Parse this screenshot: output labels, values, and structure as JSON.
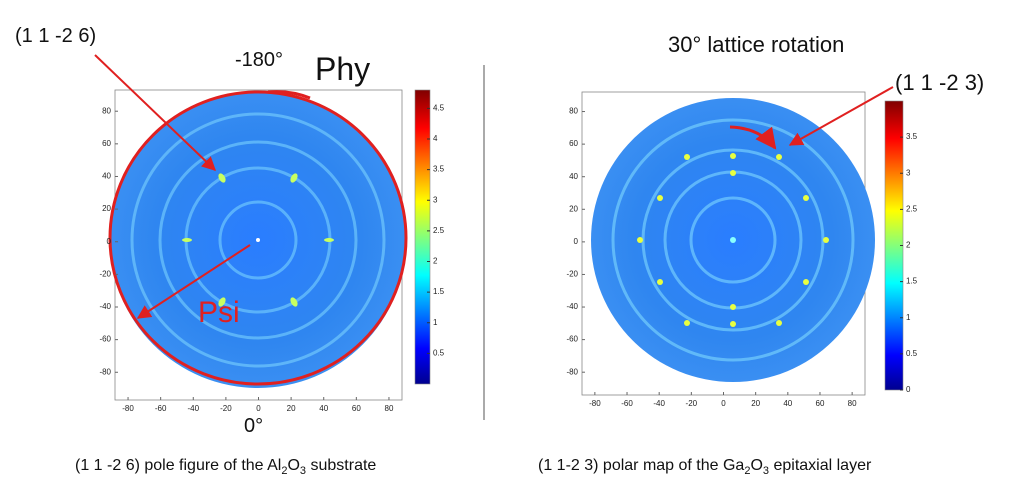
{
  "panels": [
    {
      "annotations": {
        "plane": "(1 1 -2 6)",
        "phi_start": "-180°",
        "phi": "Phy",
        "psi": "Psi",
        "phi_zero": "0°"
      },
      "xlim": [
        -88,
        88
      ],
      "ylim": [
        -97,
        93
      ],
      "x_ticks": [
        -80,
        -60,
        -40,
        -20,
        0,
        20,
        40,
        60,
        80
      ],
      "y_ticks": [
        80,
        60,
        40,
        20,
        0,
        -20,
        -40,
        -60,
        -80
      ],
      "colorbar_lim": [
        0,
        4.8
      ],
      "colorbar_ticks": [
        0.5,
        1,
        1.5,
        2,
        2.5,
        3,
        3.5,
        4,
        4.5
      ],
      "caption": [
        "(1 1 -2 6) pole figure of the Al",
        "2",
        "O",
        "3",
        " substrate"
      ]
    },
    {
      "annotations": {
        "rotation": "30° lattice rotation",
        "plane": "(1 1 -2 3)"
      },
      "xlim": [
        -88,
        88
      ],
      "ylim": [
        -94,
        92
      ],
      "x_ticks": [
        -80,
        -60,
        -40,
        -20,
        0,
        20,
        40,
        60,
        80
      ],
      "y_ticks": [
        80,
        60,
        40,
        20,
        0,
        -20,
        -40,
        -60,
        -80
      ],
      "colorbar_lim": [
        0,
        4
      ],
      "colorbar_ticks": [
        0,
        0.5,
        1,
        1.5,
        2,
        2.5,
        3,
        3.5
      ],
      "caption": [
        "(1 1-2 3) polar map of  the Ga",
        "2",
        "O",
        "3",
        " epitaxial layer"
      ]
    }
  ]
}
